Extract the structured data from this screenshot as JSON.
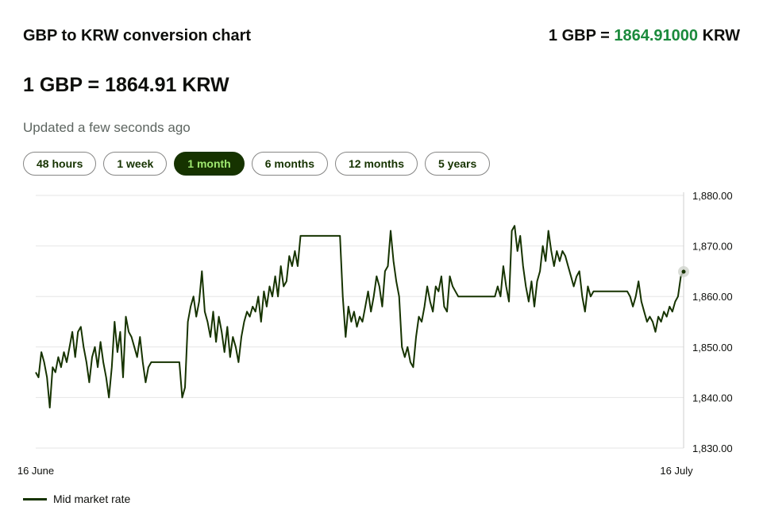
{
  "title": "GBP to KRW conversion chart",
  "header_rate": {
    "prefix": "1 GBP = ",
    "value": "1864.91000",
    "suffix": " KRW"
  },
  "big_rate": "1 GBP = 1864.91 KRW",
  "updated": "Updated a few seconds ago",
  "ranges": [
    {
      "label": "48 hours",
      "active": false
    },
    {
      "label": "1 week",
      "active": false
    },
    {
      "label": "1 month",
      "active": true
    },
    {
      "label": "6 months",
      "active": false
    },
    {
      "label": "12 months",
      "active": false
    },
    {
      "label": "5 years",
      "active": false
    }
  ],
  "colors": {
    "line": "#163300",
    "accent_green": "#1b8a3c",
    "active_pill_bg": "#163300",
    "active_pill_text": "#9fe870",
    "grid": "#e6e6e6"
  },
  "legend": {
    "label": "Mid market rate"
  },
  "chart_data": {
    "type": "line",
    "title": "",
    "xlabel": "",
    "ylabel": "",
    "x_tick_labels": [
      "16 June",
      "16 July"
    ],
    "y_tick_labels": [
      "1,880.00",
      "1,870.00",
      "1,860.00",
      "1,850.00",
      "1,840.00",
      "1,830.00"
    ],
    "ylim": [
      1830,
      1880
    ],
    "grid": true,
    "legend_position": "bottom-left",
    "series": [
      {
        "name": "Mid market rate",
        "x_range": [
          "16 June",
          "16 July"
        ],
        "values": [
          1845,
          1844,
          1849,
          1847,
          1844,
          1838,
          1846,
          1845,
          1848,
          1846,
          1849,
          1847,
          1850,
          1853,
          1848,
          1853,
          1854,
          1850,
          1847,
          1843,
          1848,
          1850,
          1846,
          1851,
          1847,
          1844,
          1840,
          1846,
          1855,
          1849,
          1853,
          1844,
          1856,
          1853,
          1852,
          1850,
          1848,
          1852,
          1847,
          1843,
          1846,
          1847,
          1847,
          1847,
          1847,
          1847,
          1847,
          1847,
          1847,
          1847,
          1847,
          1847,
          1840,
          1842,
          1855,
          1858,
          1860,
          1856,
          1859,
          1865,
          1857,
          1855,
          1852,
          1857,
          1851,
          1856,
          1853,
          1849,
          1854,
          1848,
          1852,
          1850,
          1847,
          1852,
          1855,
          1857,
          1856,
          1858,
          1857,
          1860,
          1855,
          1861,
          1858,
          1862,
          1860,
          1864,
          1860,
          1866,
          1862,
          1863,
          1868,
          1866,
          1869,
          1866,
          1872,
          1872,
          1872,
          1872,
          1872,
          1872,
          1872,
          1872,
          1872,
          1872,
          1872,
          1872,
          1872,
          1872,
          1872,
          1860,
          1852,
          1858,
          1855,
          1857,
          1854,
          1856,
          1855,
          1858,
          1861,
          1857,
          1860,
          1864,
          1862,
          1858,
          1865,
          1866,
          1873,
          1867,
          1863,
          1860,
          1850,
          1848,
          1850,
          1847,
          1846,
          1852,
          1856,
          1855,
          1858,
          1862,
          1859,
          1857,
          1862,
          1861,
          1864,
          1858,
          1857,
          1864,
          1862,
          1861,
          1860,
          1860,
          1860,
          1860,
          1860,
          1860,
          1860,
          1860,
          1860,
          1860,
          1860,
          1860,
          1860,
          1860,
          1862,
          1860,
          1866,
          1862,
          1859,
          1873,
          1874,
          1869,
          1872,
          1866,
          1862,
          1859,
          1863,
          1858,
          1863,
          1865,
          1870,
          1867,
          1873,
          1869,
          1866,
          1869,
          1867,
          1869,
          1868,
          1866,
          1864,
          1862,
          1864,
          1865,
          1860,
          1857,
          1862,
          1860,
          1861,
          1861,
          1861,
          1861,
          1861,
          1861,
          1861,
          1861,
          1861,
          1861,
          1861,
          1861,
          1861,
          1860,
          1858,
          1860,
          1863,
          1859,
          1857,
          1855,
          1856,
          1855,
          1853,
          1856,
          1855,
          1857,
          1856,
          1858,
          1857,
          1859,
          1860,
          1864,
          1865
        ]
      }
    ],
    "last_value": 1864.91
  }
}
